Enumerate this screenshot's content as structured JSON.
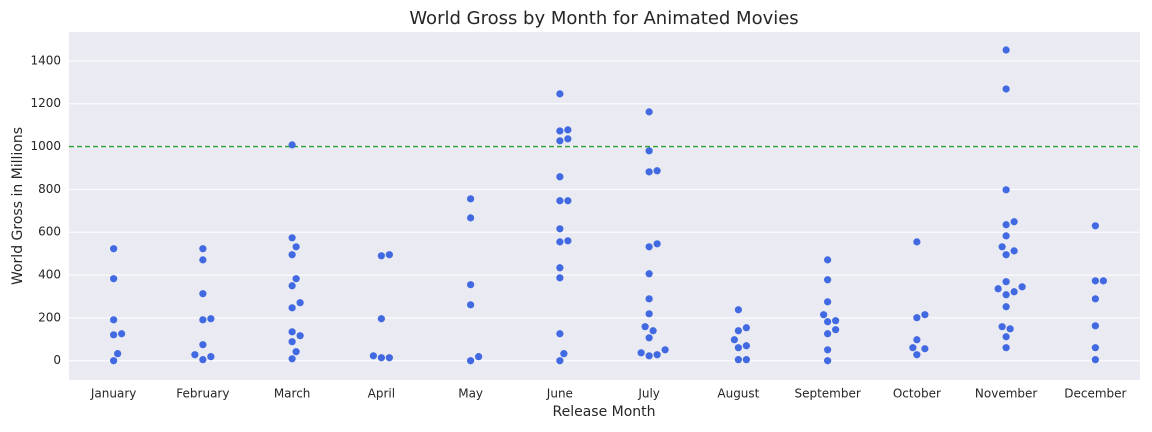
{
  "chart_data": {
    "type": "swarm",
    "title": "World Gross by Month for Animated Movies",
    "x_label": "Release Month",
    "y_label": "World Gross in Millions",
    "categories": [
      "January",
      "February",
      "March",
      "April",
      "May",
      "June",
      "July",
      "August",
      "September",
      "October",
      "November",
      "December"
    ],
    "values": [
      [
        126,
        33,
        523,
        383,
        191,
        121,
        0
      ],
      [
        196,
        19,
        523,
        471,
        313,
        191,
        75,
        5,
        28
      ],
      [
        1008,
        532,
        574,
        495,
        383,
        350,
        271,
        247,
        117,
        135,
        89,
        42,
        9
      ],
      [
        495,
        490,
        196,
        23,
        14,
        14
      ],
      [
        756,
        667,
        355,
        261,
        19,
        0
      ],
      [
        1078,
        1036,
        1246,
        1073,
        1027,
        859,
        747,
        747,
        616,
        560,
        555,
        434,
        387,
        126,
        33,
        0
      ],
      [
        1162,
        980,
        887,
        882,
        546,
        532,
        406,
        289,
        219,
        159,
        140,
        107,
        51,
        28,
        23,
        37
      ],
      [
        238,
        154,
        140,
        70,
        98,
        61,
        5,
        5
      ],
      [
        471,
        378,
        275,
        187,
        145,
        182,
        215,
        126,
        51,
        0
      ],
      [
        555,
        215,
        201,
        56,
        98,
        61,
        28
      ],
      [
        1451,
        1269,
        798,
        649,
        635,
        583,
        532,
        513,
        495,
        369,
        336,
        345,
        322,
        308,
        252,
        159,
        149,
        112,
        61
      ],
      [
        630,
        373,
        373,
        289,
        163,
        61,
        5
      ]
    ],
    "color": "#4169e1",
    "reference_line": {
      "value": 1000,
      "color": "#2ca02c"
    },
    "ylim": [
      -90,
      1535
    ],
    "yticks": [
      0,
      200,
      400,
      600,
      800,
      1000,
      1200,
      1400
    ],
    "grid": true
  }
}
